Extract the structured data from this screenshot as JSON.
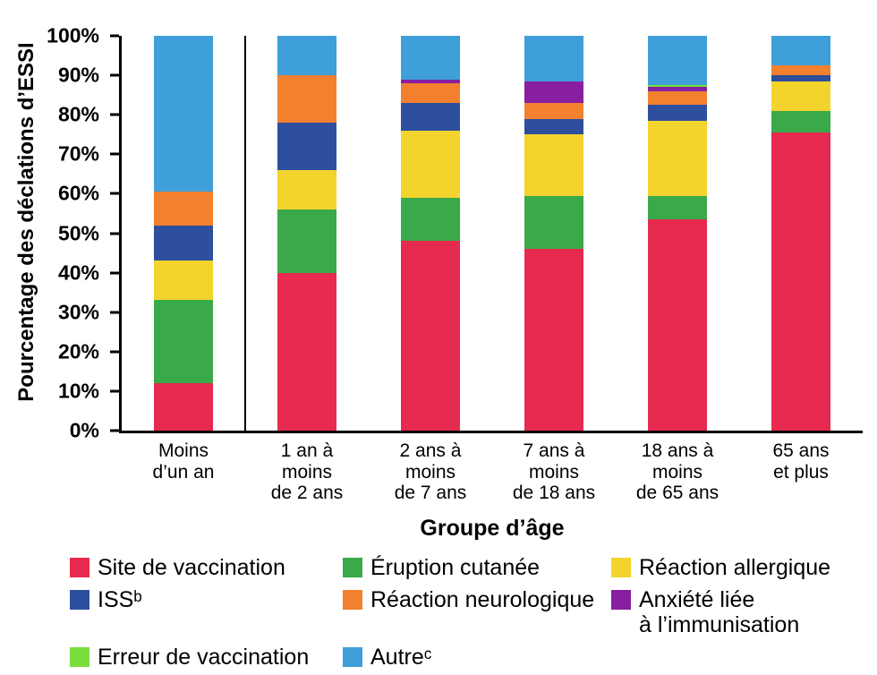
{
  "chart_data": {
    "type": "bar",
    "subtype": "stacked-100-percent",
    "title": "",
    "xlabel": "Groupe d’âge",
    "ylabel": "Pourcentage des déclations d’ESSI",
    "ylim": [
      0,
      100
    ],
    "grid": false,
    "legend_position": "bottom",
    "yticks": [
      {
        "v": 0,
        "label": "0%"
      },
      {
        "v": 10,
        "label": "10%"
      },
      {
        "v": 20,
        "label": "20%"
      },
      {
        "v": 30,
        "label": "30%"
      },
      {
        "v": 40,
        "label": "40%"
      },
      {
        "v": 50,
        "label": "50%"
      },
      {
        "v": 60,
        "label": "60%"
      },
      {
        "v": 70,
        "label": "70%"
      },
      {
        "v": 80,
        "label": "80%"
      },
      {
        "v": 90,
        "label": "90%"
      },
      {
        "v": 100,
        "label": "100%"
      }
    ],
    "categories": [
      "Moins\nd’un an",
      "1 an à\nmoins\nde 2 ans",
      "2 ans à\nmoins\nde 7 ans",
      "7 ans à\nmoins\nde 18 ans",
      "18 ans à\nmoins\nde 65 ans",
      "65 ans\net plus"
    ],
    "series": [
      {
        "name": "Site de vaccination",
        "color": "#e72a4f",
        "values": [
          12,
          40,
          48,
          46,
          53.5,
          75.5
        ]
      },
      {
        "name": "Éruption cutanée",
        "color": "#3aa94a",
        "values": [
          21,
          16,
          11,
          13.5,
          6,
          5.5
        ]
      },
      {
        "name": "Réaction allergique",
        "color": "#f3d42c",
        "values": [
          10,
          10,
          17,
          15.5,
          19,
          7.5
        ]
      },
      {
        "name": "ISSᵇ",
        "color": "#2d4f9e",
        "values": [
          9,
          12,
          7,
          4,
          4,
          1.5
        ]
      },
      {
        "name": "Réaction neurologique",
        "color": "#f2802e",
        "values": [
          8.5,
          12,
          5,
          4,
          3.5,
          2.5
        ]
      },
      {
        "name": "Anxiété liée à l’immunisation",
        "legend_label": "Anxiété liée\nà l’immunisation",
        "color": "#871fa0",
        "values": [
          0,
          0,
          1,
          5.5,
          1,
          0
        ]
      },
      {
        "name": "Erreur de vaccination",
        "color": "#79de3a",
        "values": [
          0,
          0,
          0,
          0,
          0.5,
          0
        ]
      },
      {
        "name": "Autreᶜ",
        "color": "#3f9fd8",
        "values": [
          39.5,
          10,
          11,
          11.5,
          12.5,
          7.5
        ]
      }
    ]
  }
}
